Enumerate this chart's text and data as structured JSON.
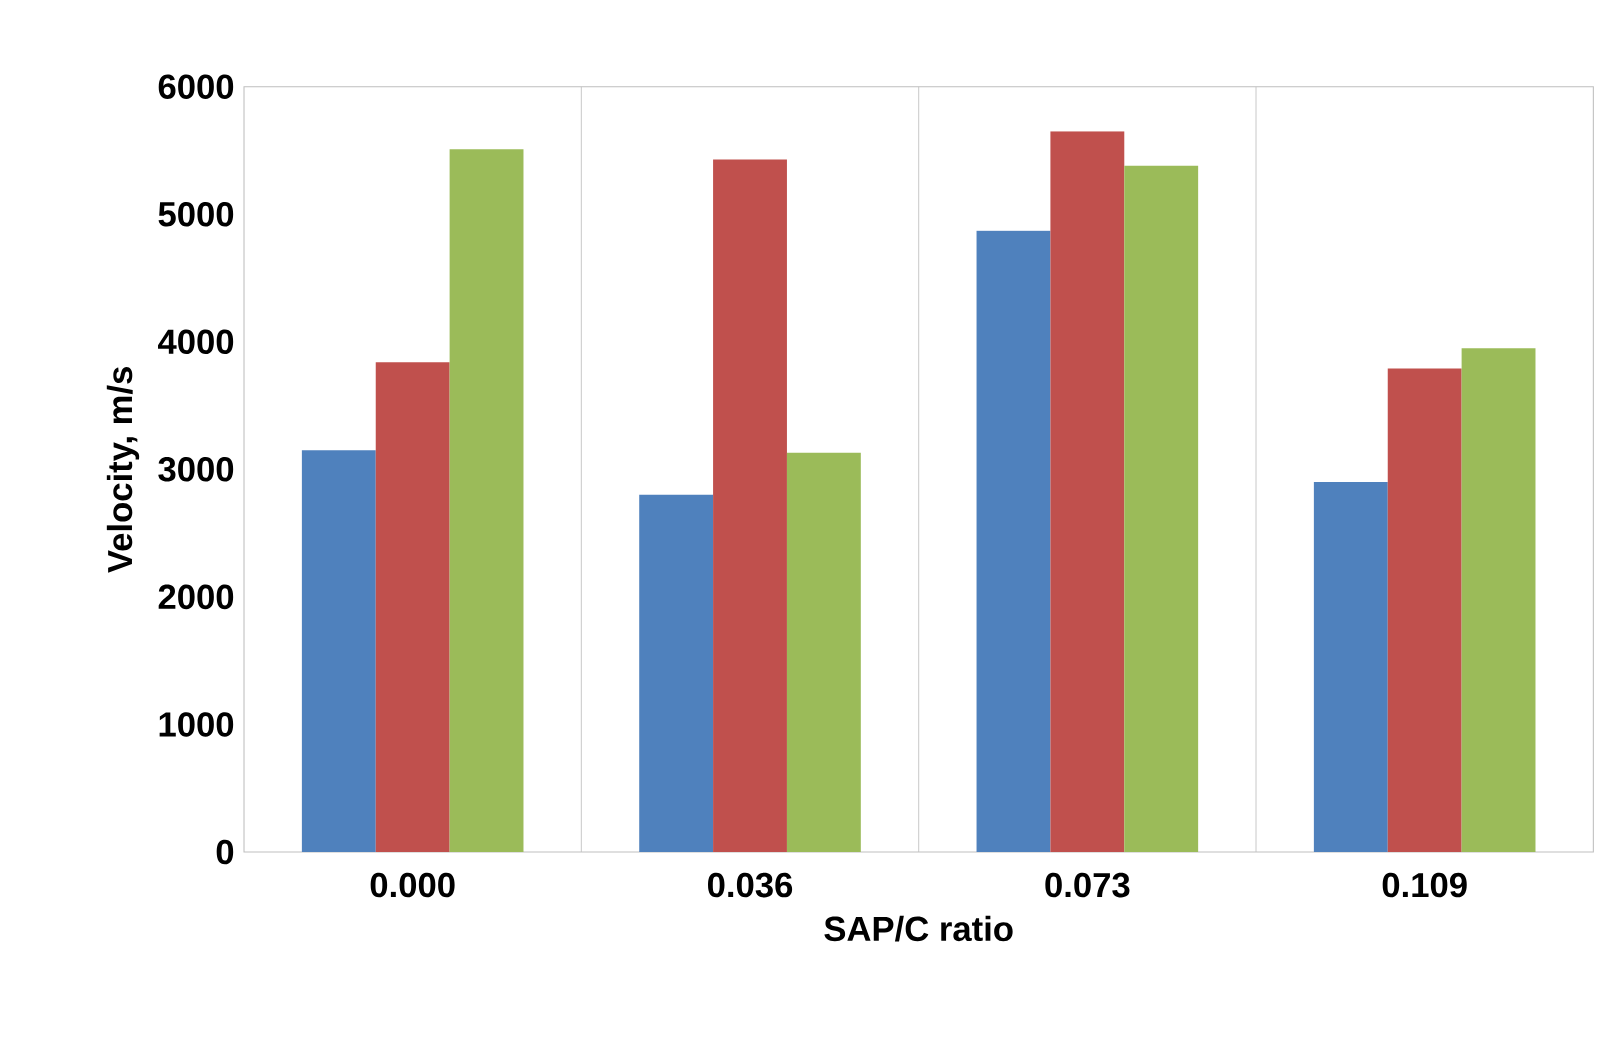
{
  "chart_data": {
    "type": "bar",
    "xlabel": "SAP/C ratio",
    "ylabel": "Velocity, m/s",
    "categories": [
      "0.000",
      "0.036",
      "0.073",
      "0.109"
    ],
    "series": [
      {
        "color": "#4f81bd",
        "values": [
          3150,
          2800,
          4870,
          2900
        ]
      },
      {
        "color": "#c0504d",
        "values": [
          3840,
          5430,
          5650,
          3790
        ]
      },
      {
        "color": "#9bbb59",
        "values": [
          5510,
          3130,
          5380,
          3950
        ]
      }
    ],
    "ylim": [
      0,
      6000
    ],
    "yticks": [
      0,
      1000,
      2000,
      3000,
      4000,
      5000,
      6000
    ],
    "grid": "x"
  }
}
